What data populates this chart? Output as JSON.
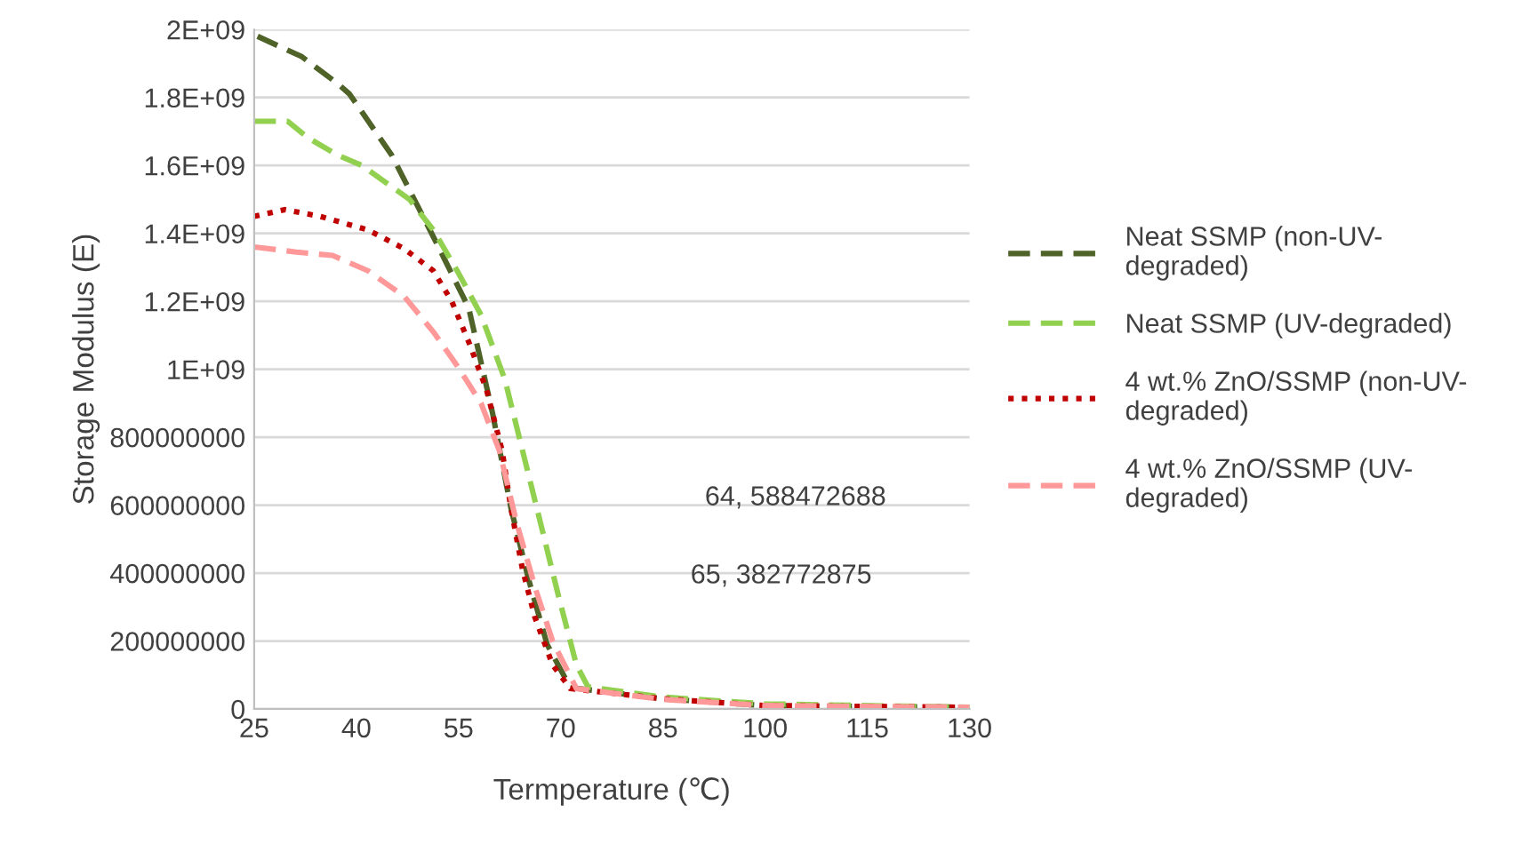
{
  "chart_data": {
    "type": "line",
    "xlabel": "Termperature (℃)",
    "ylabel": "Storage Modulus (E)",
    "xlim": [
      25,
      130
    ],
    "xticks": [
      25,
      40,
      55,
      70,
      85,
      100,
      115,
      130
    ],
    "ylim": [
      0,
      2000000000
    ],
    "yticks": [
      0,
      200000000,
      400000000,
      600000000,
      800000000,
      {
        "value": 1000000000,
        "label": "1E+09"
      },
      {
        "value": 1200000000,
        "label": "1.2E+09"
      },
      {
        "value": 1400000000,
        "label": "1.4E+09"
      },
      {
        "value": 1600000000,
        "label": "1.6E+09"
      },
      {
        "value": 1800000000,
        "label": "1.8E+09"
      },
      {
        "value": 2000000000,
        "label": "2E+09"
      }
    ],
    "grid": "y",
    "legend": "right",
    "marker": "none",
    "annotations": [
      "64, 588472688",
      "65, 382772875"
    ],
    "series": [
      {
        "name": "Neat SSMP (non-UV-\ndegraded)",
        "color": "#4f6228",
        "line_style": "dashed",
        "x": [
          25.5,
          32,
          37.3,
          39,
          45.2,
          51.3,
          56.5,
          60,
          62.7,
          65.3,
          68,
          71.4,
          85,
          100,
          130
        ],
        "values": [
          1980000000,
          1920000000,
          1840000000,
          1810000000,
          1630000000,
          1390000000,
          1180000000,
          870000000,
          590000000,
          380000000,
          190000000,
          63000000,
          30000000,
          10000000,
          5000000
        ]
      },
      {
        "name": "Neat SSMP (UV-degraded)",
        "color": "#92d050",
        "line_style": "dashed",
        "x": [
          25,
          29.9,
          33,
          37.3,
          40.8,
          47.8,
          51.3,
          54.8,
          58.3,
          61.8,
          64.4,
          67,
          69.7,
          72.3,
          74,
          85,
          100,
          130
        ],
        "values": [
          1730000000,
          1730000000,
          1680000000,
          1630000000,
          1600000000,
          1500000000,
          1410000000,
          1290000000,
          1160000000,
          970000000,
          760000000,
          550000000,
          330000000,
          130000000,
          65000000,
          35000000,
          15000000,
          5000000
        ]
      },
      {
        "name": "4 wt.% ZnO/SSMP (non-UV-\ndegraded)",
        "color": "#c00000",
        "line_style": "dotted",
        "x": [
          25,
          29.5,
          34.7,
          41.7,
          47,
          51.3,
          54,
          56.5,
          59.1,
          61.4,
          62.7,
          64.4,
          66.2,
          68.8,
          71.4,
          85,
          100,
          130
        ],
        "values": [
          1450000000,
          1470000000,
          1450000000,
          1410000000,
          1355000000,
          1290000000,
          1200000000,
          1080000000,
          940000000,
          760000000,
          590000000,
          410000000,
          270000000,
          130000000,
          60000000,
          30000000,
          10000000,
          5000000
        ]
      },
      {
        "name": "4 wt.% ZnO/SSMP (UV-\ndegraded)",
        "color": "#ff9999",
        "line_style": "dashed",
        "x": [
          25,
          31.2,
          36.5,
          41.7,
          47,
          51.3,
          54.8,
          58.3,
          61,
          63.5,
          66.2,
          68.8,
          72.3,
          85,
          100,
          130
        ],
        "values": [
          1360000000,
          1345000000,
          1335000000,
          1290000000,
          1215000000,
          1110000000,
          1010000000,
          900000000,
          760000000,
          550000000,
          360000000,
          200000000,
          60000000,
          28000000,
          10000000,
          5000000
        ]
      }
    ]
  }
}
